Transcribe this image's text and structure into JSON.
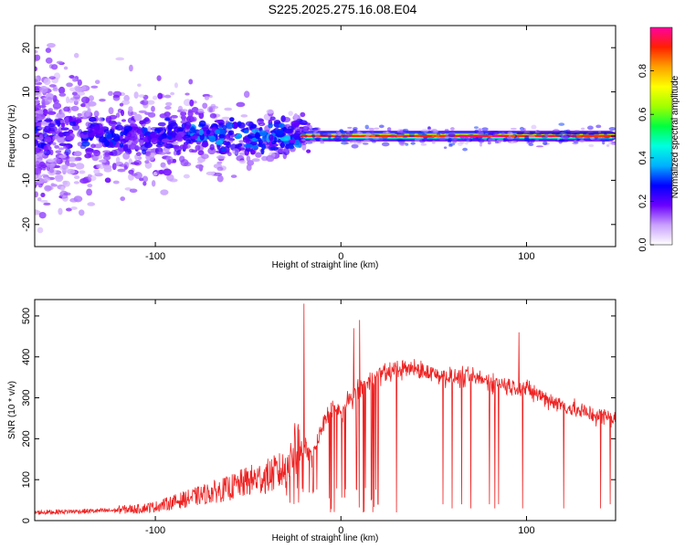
{
  "title": "S225.2025.275.16.08.E04",
  "chart_data": [
    {
      "type": "heatmap",
      "name": "spectrogram",
      "xlabel": "Height of straight line (km)",
      "ylabel": "Frequency (Hz)",
      "xlim": [
        -165,
        148
      ],
      "ylim": [
        -25,
        25
      ],
      "xticks": [
        -100,
        0,
        100
      ],
      "yticks": [
        -20,
        -10,
        0,
        10,
        20
      ],
      "colorbar": {
        "label": "Normalized spectral amplitude",
        "range": [
          0,
          1
        ],
        "ticks": [
          0.0,
          0.2,
          0.4,
          0.6,
          0.8
        ],
        "colormap": [
          "#ffffff",
          "#c9a0ff",
          "#6a00ff",
          "#0000ff",
          "#00b0ff",
          "#00ffe0",
          "#00ff40",
          "#a0ff00",
          "#ffff00",
          "#ffa000",
          "#ff2000",
          "#ff00a0"
        ]
      },
      "signal_band_hz": 0,
      "coherent_onset_km": -22
    },
    {
      "type": "line",
      "name": "snr",
      "xlabel": "Height of straight line (km)",
      "ylabel": "SNR (10 * v/v)",
      "xlim": [
        -165,
        148
      ],
      "ylim": [
        0,
        540
      ],
      "xticks": [
        -100,
        0,
        100
      ],
      "yticks": [
        0,
        100,
        200,
        300,
        400,
        500
      ],
      "color": "#ee2222",
      "series": [
        {
          "name": "SNR",
          "x": [
            -165,
            -150,
            -130,
            -110,
            -100,
            -90,
            -80,
            -70,
            -60,
            -50,
            -40,
            -30,
            -25,
            -20,
            -15,
            -10,
            -5,
            0,
            5,
            10,
            15,
            20,
            25,
            30,
            40,
            50,
            60,
            70,
            80,
            90,
            100,
            110,
            120,
            130,
            140,
            148
          ],
          "y": [
            18,
            20,
            22,
            25,
            30,
            40,
            50,
            60,
            70,
            85,
            95,
            110,
            150,
            180,
            160,
            230,
            280,
            260,
            300,
            320,
            340,
            360,
            360,
            370,
            370,
            360,
            350,
            350,
            340,
            330,
            320,
            300,
            280,
            265,
            255,
            250
          ],
          "spikes": [
            {
              "x": -20,
              "y": 530
            },
            {
              "x": 10,
              "y": 490
            },
            {
              "x": 7,
              "y": 470
            },
            {
              "x": 96,
              "y": 460
            }
          ],
          "dropouts": [
            {
              "x": 12,
              "y": 20
            },
            {
              "x": 20,
              "y": 40
            },
            {
              "x": 30,
              "y": 20
            },
            {
              "x": 55,
              "y": 40
            },
            {
              "x": 60,
              "y": 30
            },
            {
              "x": 65,
              "y": 40
            },
            {
              "x": 70,
              "y": 30
            },
            {
              "x": 80,
              "y": 40
            },
            {
              "x": 83,
              "y": 30
            },
            {
              "x": 85,
              "y": 40
            },
            {
              "x": 98,
              "y": 30
            },
            {
              "x": 120,
              "y": 30
            },
            {
              "x": 140,
              "y": 30
            },
            {
              "x": 145,
              "y": 40
            }
          ]
        }
      ]
    }
  ]
}
